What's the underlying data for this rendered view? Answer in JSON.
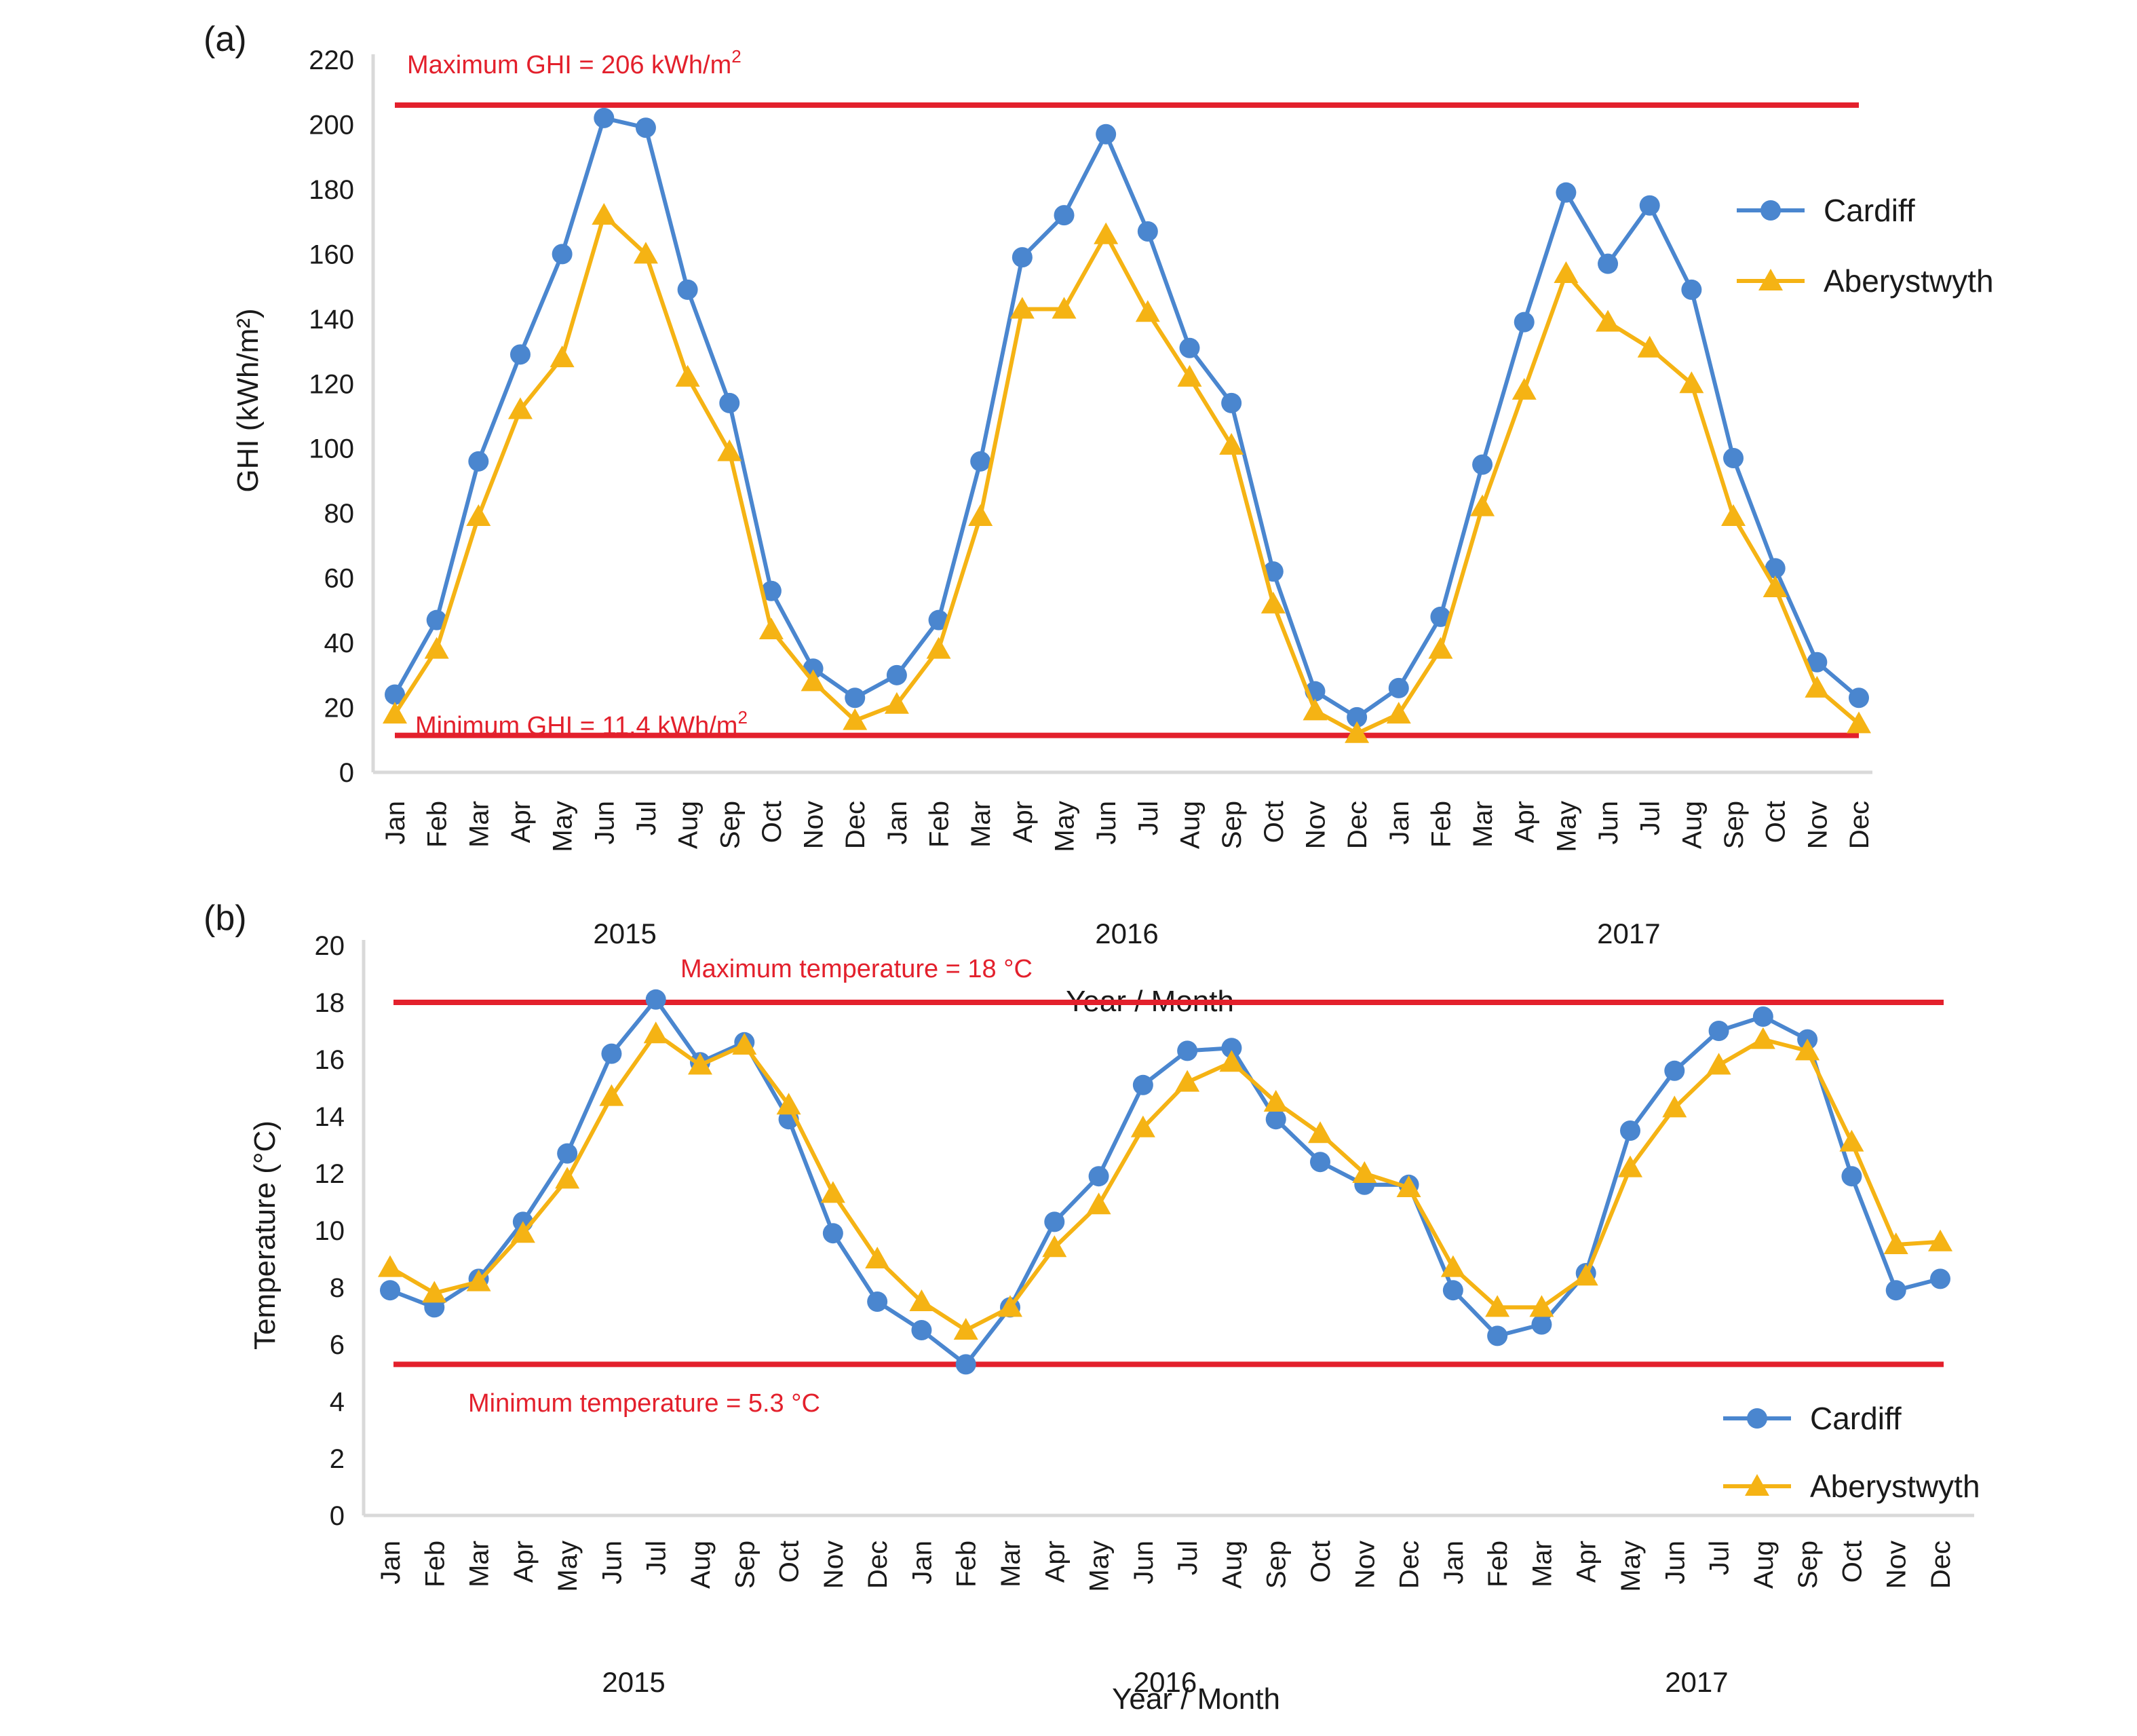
{
  "chart_data": [
    {
      "type": "line",
      "panel_label": "(a)",
      "title": "",
      "xlabel": "Year / Month",
      "ylabel": "GHI (kWh/m²)",
      "ylim": [
        0,
        220
      ],
      "yticks": [
        0,
        20,
        40,
        60,
        80,
        100,
        120,
        140,
        160,
        180,
        200,
        220
      ],
      "grid": false,
      "legend_position": "top-right",
      "years": [
        "2015",
        "2016",
        "2017"
      ],
      "categories": [
        "Jan",
        "Feb",
        "Mar",
        "Apr",
        "May",
        "Jun",
        "Jul",
        "Aug",
        "Sep",
        "Oct",
        "Nov",
        "Dec",
        "Jan",
        "Feb",
        "Mar",
        "Apr",
        "May",
        "Jun",
        "Jul",
        "Aug",
        "Sep",
        "Oct",
        "Nov",
        "Dec",
        "Jan",
        "Feb",
        "Mar",
        "Apr",
        "May",
        "Jun",
        "Jul",
        "Aug",
        "Sep",
        "Oct",
        "Nov",
        "Dec"
      ],
      "series": [
        {
          "name": "Cardiff",
          "marker": "circle",
          "color": "#4a86cf",
          "values": [
            24,
            47,
            96,
            129,
            160,
            202,
            199,
            149,
            114,
            56,
            32,
            23,
            30,
            47,
            96,
            159,
            172,
            197,
            167,
            131,
            114,
            62,
            25,
            17,
            26,
            48,
            95,
            139,
            179,
            157,
            175,
            149,
            97,
            63,
            34,
            23
          ]
        },
        {
          "name": "Aberystwyth",
          "marker": "triangle",
          "color": "#f5b314",
          "values": [
            18,
            38,
            79,
            112,
            128,
            172,
            160,
            122,
            99,
            44,
            28,
            16,
            21,
            38,
            79,
            143,
            143,
            166,
            142,
            122,
            101,
            52,
            19,
            12,
            18,
            38,
            82,
            118,
            154,
            139,
            131,
            120,
            79,
            57,
            26,
            15
          ]
        }
      ],
      "reference_lines": [
        {
          "value": 206,
          "label": "Maximum GHI = 206 kWh/m",
          "sup": "2",
          "color": "#e3202c",
          "label_position": "above-left"
        },
        {
          "value": 11.4,
          "label": "Minimum GHI = 11.4 kWh/m",
          "sup": "2",
          "color": "#e3202c",
          "label_position": "above-left"
        }
      ]
    },
    {
      "type": "line",
      "panel_label": "(b)",
      "title": "",
      "xlabel": "Year / Month",
      "ylabel": "Temperature (°C)",
      "ylim": [
        0,
        20
      ],
      "yticks": [
        0,
        2,
        4,
        6,
        8,
        10,
        12,
        14,
        16,
        18,
        20
      ],
      "grid": false,
      "legend_position": "bottom-right",
      "years": [
        "2015",
        "2016",
        "2017"
      ],
      "categories": [
        "Jan",
        "Feb",
        "Mar",
        "Apr",
        "May",
        "Jun",
        "Jul",
        "Aug",
        "Sep",
        "Oct",
        "Nov",
        "Dec",
        "Jan",
        "Feb",
        "Mar",
        "Apr",
        "May",
        "Jun",
        "Jul",
        "Aug",
        "Sep",
        "Oct",
        "Nov",
        "Dec",
        "Jan",
        "Feb",
        "Mar",
        "Apr",
        "May",
        "Jun",
        "Jul",
        "Aug",
        "Sep",
        "Oct",
        "Nov",
        "Dec"
      ],
      "series": [
        {
          "name": "Cardiff",
          "marker": "circle",
          "color": "#4a86cf",
          "values": [
            7.9,
            7.3,
            8.3,
            10.3,
            12.7,
            16.2,
            18.1,
            15.9,
            16.6,
            13.9,
            9.9,
            7.5,
            6.5,
            5.3,
            7.3,
            10.3,
            11.9,
            15.1,
            16.3,
            16.4,
            13.9,
            12.4,
            11.6,
            11.6,
            7.9,
            6.3,
            6.7,
            8.5,
            13.5,
            15.6,
            17.0,
            17.5,
            16.7,
            11.9,
            7.9,
            8.3
          ]
        },
        {
          "name": "Aberystwyth",
          "marker": "triangle",
          "color": "#f5b314",
          "values": [
            8.7,
            7.8,
            8.2,
            9.9,
            11.8,
            14.7,
            16.9,
            15.8,
            16.5,
            14.4,
            11.3,
            9.0,
            7.5,
            6.5,
            7.3,
            9.4,
            10.9,
            13.6,
            15.2,
            15.9,
            14.5,
            13.4,
            12.0,
            11.5,
            8.7,
            7.3,
            7.3,
            8.4,
            12.2,
            14.3,
            15.8,
            16.7,
            16.3,
            13.1,
            9.5,
            9.6
          ]
        }
      ],
      "reference_lines": [
        {
          "value": 18,
          "label": "Maximum temperature = 18 °C",
          "sup": "",
          "color": "#e3202c",
          "label_position": "above-center"
        },
        {
          "value": 5.3,
          "label": "Minimum temperature = 5.3 °C",
          "sup": "",
          "color": "#e3202c",
          "label_position": "below-left"
        }
      ]
    }
  ]
}
